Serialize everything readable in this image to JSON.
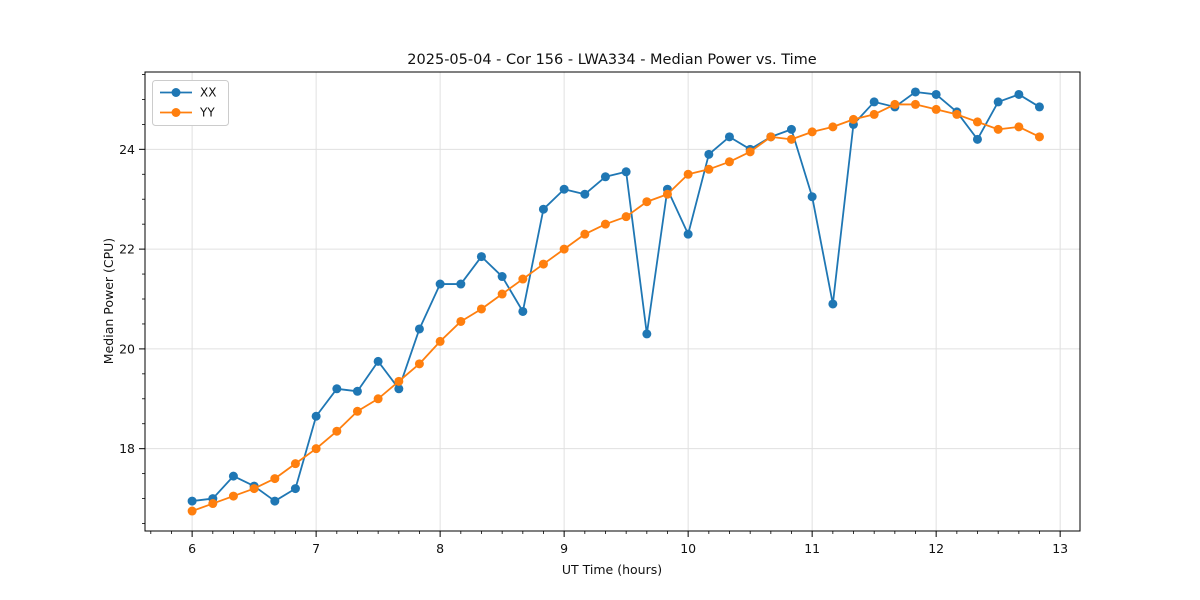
{
  "chart_data": {
    "type": "line",
    "title": "2025-05-04 - Cor 156 - LWA334 - Median Power vs. Time",
    "xlabel": "UT Time (hours)",
    "ylabel": "Median Power (CPU)",
    "grid": true,
    "legend_position": "upper left",
    "xlim": [
      5.62,
      13.16
    ],
    "ylim": [
      16.35,
      25.55
    ],
    "xticks": [
      6,
      7,
      8,
      9,
      10,
      11,
      12,
      13
    ],
    "yticks": [
      18,
      20,
      22,
      24
    ],
    "x_minor_step": 0.16667,
    "y_minor_step": 0.5,
    "x": [
      6.0,
      6.167,
      6.333,
      6.5,
      6.667,
      6.833,
      7.0,
      7.167,
      7.333,
      7.5,
      7.667,
      7.833,
      8.0,
      8.167,
      8.333,
      8.5,
      8.667,
      8.833,
      9.0,
      9.167,
      9.333,
      9.5,
      9.667,
      9.833,
      10.0,
      10.167,
      10.333,
      10.5,
      10.667,
      10.833,
      11.0,
      11.167,
      11.333,
      11.5,
      11.667,
      11.833,
      12.0,
      12.167,
      12.333,
      12.5,
      12.667,
      12.833
    ],
    "series": [
      {
        "name": "XX",
        "color": "#1f77b4",
        "marker": "circle",
        "values": [
          16.95,
          17.0,
          17.45,
          17.25,
          16.95,
          17.2,
          18.65,
          19.2,
          19.15,
          19.75,
          19.2,
          20.4,
          21.3,
          21.3,
          21.85,
          21.45,
          20.75,
          22.8,
          23.2,
          23.1,
          23.45,
          23.55,
          20.3,
          23.2,
          22.3,
          23.9,
          24.25,
          24.0,
          24.25,
          24.4,
          23.05,
          20.9,
          24.5,
          24.95,
          24.85,
          25.15,
          25.1,
          24.75,
          24.2,
          24.95,
          25.1,
          24.85
        ]
      },
      {
        "name": "YY",
        "color": "#ff7f0e",
        "marker": "circle",
        "values": [
          16.75,
          16.9,
          17.05,
          17.2,
          17.4,
          17.7,
          18.0,
          18.35,
          18.75,
          19.0,
          19.35,
          19.7,
          20.15,
          20.55,
          20.8,
          21.1,
          21.4,
          21.7,
          22.0,
          22.3,
          22.5,
          22.65,
          22.95,
          23.1,
          23.5,
          23.6,
          23.75,
          23.95,
          24.25,
          24.2,
          24.35,
          24.45,
          24.6,
          24.7,
          24.9,
          24.9,
          24.8,
          24.7,
          24.55,
          24.4,
          24.45,
          24.25
        ]
      }
    ]
  },
  "style": {
    "grid_color": "#e0e0e0",
    "spine_color": "#000000",
    "legend_border_color": "#cccccc",
    "background": "#ffffff"
  }
}
